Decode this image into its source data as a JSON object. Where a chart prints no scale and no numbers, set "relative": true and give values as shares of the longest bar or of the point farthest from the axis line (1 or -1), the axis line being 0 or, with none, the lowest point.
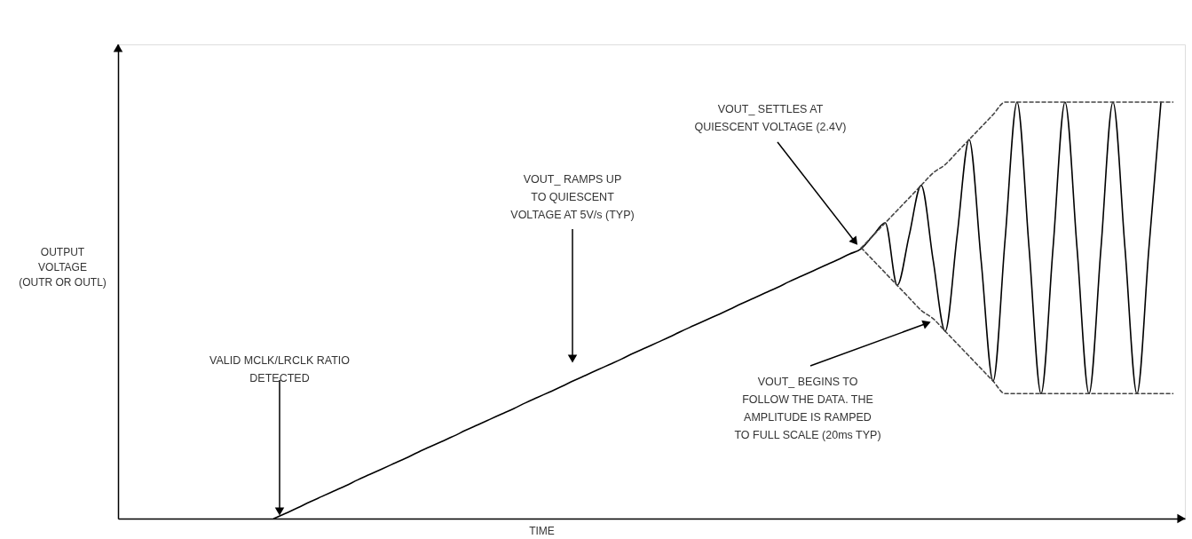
{
  "chart_data": {
    "type": "line",
    "relative": true,
    "tick_labels": false,
    "xlabel": "TIME",
    "ylabel": "OUTPUT\nVOLTAGE\n(OUTR OR OUTL)",
    "categories": [
      null,
      null,
      null,
      null,
      null,
      null,
      null,
      null,
      null,
      null,
      null,
      null,
      null,
      null,
      null,
      null,
      null,
      null,
      null,
      null,
      null,
      null,
      null,
      null,
      null,
      null,
      null,
      null,
      null,
      null,
      null,
      null,
      null,
      null,
      null,
      null,
      null,
      null,
      null,
      null,
      null,
      null,
      null,
      null,
      null,
      null,
      null,
      null,
      null,
      null,
      null,
      null,
      null,
      null,
      null,
      null,
      null,
      null,
      null,
      null,
      null,
      null,
      null,
      null,
      null,
      null,
      null,
      null,
      null,
      null,
      null,
      null,
      null,
      null,
      null,
      null,
      null,
      null,
      null,
      null,
      null,
      null,
      null,
      null,
      null,
      null,
      null,
      null,
      null,
      null
    ],
    "series": [
      {
        "color": "#000000",
        "line_style": "solid",
        "values": [
          null,
          null,
          null,
          null,
          null,
          null,
          null,
          null,
          null,
          null,
          null,
          null,
          null,
          0,
          0.013,
          0.026,
          0.04,
          0.053,
          0.066,
          0.079,
          0.093,
          0.106,
          0.119,
          0.132,
          0.145,
          0.159,
          0.172,
          0.185,
          0.198,
          0.212,
          0.225,
          0.238,
          0.251,
          0.264,
          0.278,
          0.291,
          0.304,
          0.317,
          0.331,
          0.344,
          0.357,
          0.37,
          0.383,
          0.397,
          0.41,
          0.423,
          0.436,
          0.45,
          0.463,
          0.476,
          0.489,
          0.502,
          0.516,
          0.529,
          0.542,
          0.555,
          0.569,
          0.582,
          0.595,
          0.608,
          0.621,
          0.635,
          0.648,
          0.68,
          0.71,
          0.56,
          0.68,
          0.8,
          0.62,
          0.45,
          0.68,
          0.91,
          0.62,
          0.33,
          0.67,
          1,
          0.65,
          0.3,
          0.65,
          1,
          0.65,
          0.3,
          0.65,
          1,
          0.65,
          0.3,
          0.65,
          1,
          null,
          null
        ]
      },
      {
        "color": "#444444",
        "line_style": "dashed",
        "values": [
          null,
          null,
          null,
          null,
          null,
          null,
          null,
          null,
          null,
          null,
          null,
          null,
          null,
          null,
          null,
          null,
          null,
          null,
          null,
          null,
          null,
          null,
          null,
          null,
          null,
          null,
          null,
          null,
          null,
          null,
          null,
          null,
          null,
          null,
          null,
          null,
          null,
          null,
          null,
          null,
          null,
          null,
          null,
          null,
          null,
          null,
          null,
          null,
          null,
          null,
          null,
          null,
          null,
          null,
          null,
          null,
          null,
          null,
          null,
          null,
          null,
          null,
          0.65,
          0.68,
          0.71,
          0.74,
          0.77,
          0.8,
          0.83,
          0.85,
          0.88,
          0.91,
          0.94,
          0.97,
          1,
          1,
          1,
          1,
          1,
          1,
          1,
          1,
          1,
          1,
          1,
          1,
          1,
          1,
          1,
          null
        ]
      },
      {
        "color": "#444444",
        "line_style": "dashed",
        "values": [
          null,
          null,
          null,
          null,
          null,
          null,
          null,
          null,
          null,
          null,
          null,
          null,
          null,
          null,
          null,
          null,
          null,
          null,
          null,
          null,
          null,
          null,
          null,
          null,
          null,
          null,
          null,
          null,
          null,
          null,
          null,
          null,
          null,
          null,
          null,
          null,
          null,
          null,
          null,
          null,
          null,
          null,
          null,
          null,
          null,
          null,
          null,
          null,
          null,
          null,
          null,
          null,
          null,
          null,
          null,
          null,
          null,
          null,
          null,
          null,
          null,
          null,
          0.65,
          0.62,
          0.59,
          0.56,
          0.53,
          0.5,
          0.48,
          0.45,
          0.42,
          0.39,
          0.36,
          0.33,
          0.3,
          0.3,
          0.3,
          0.3,
          0.3,
          0.3,
          0.3,
          0.3,
          0.3,
          0.3,
          0.3,
          0.3,
          0.3,
          0.3,
          0.3,
          null
        ]
      }
    ],
    "annotations": [
      "VALID MCLK/LRCLK RATIO\nDETECTED",
      "VOUT_ RAMPS UP\nTO QUIESCENT\nVOLTAGE AT 5V/s (TYP)",
      "VOUT_ SETTLES AT\nQUIESCENT VOLTAGE (2.4V)",
      "VOUT_ BEGINS TO\nFOLLOW THE DATA. THE\nAMPLITUDE IS RAMPED\nTO FULL SCALE  (20ms TYP)"
    ]
  }
}
